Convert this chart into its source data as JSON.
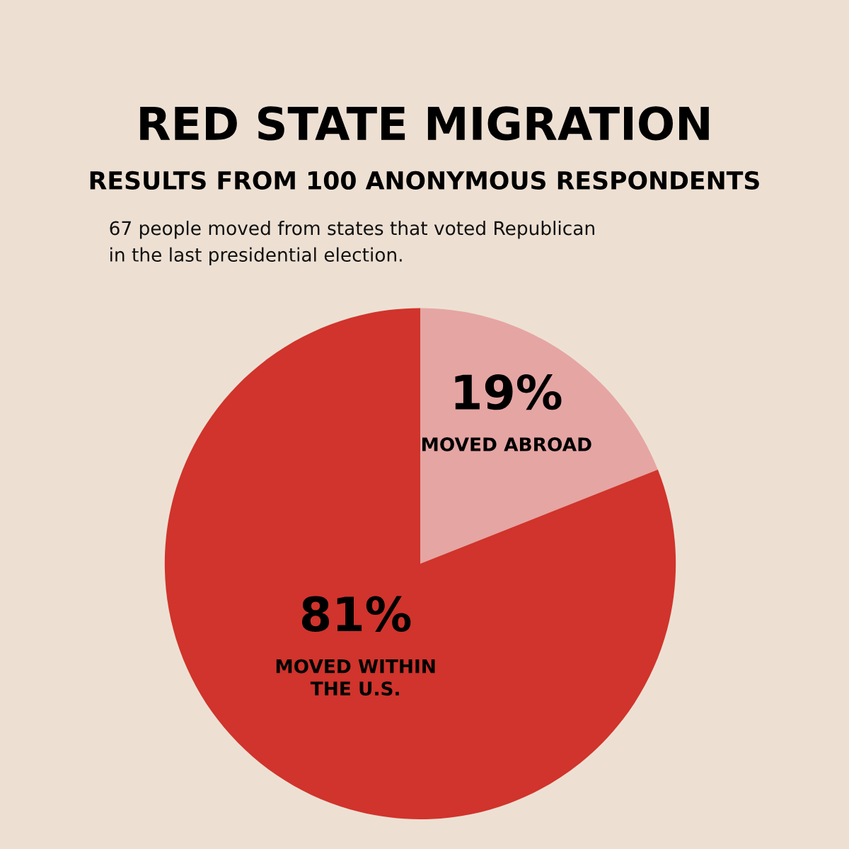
{
  "chart_data": {
    "type": "pie",
    "title": "RED STATE MIGRATION",
    "subtitle": "RESULTS FROM 100 ANONYMOUS RESPONDENTS",
    "annotations": [
      "67 people moved from states that voted Republican\nin the last presidential election."
    ],
    "categories": [
      "MOVED ABROAD",
      "MOVED WITHIN\nTHE U.S."
    ],
    "values": [
      19,
      81
    ],
    "value_labels": [
      "19%",
      "81%"
    ],
    "colors": [
      "#e5a5a3",
      "#d0342c"
    ]
  }
}
